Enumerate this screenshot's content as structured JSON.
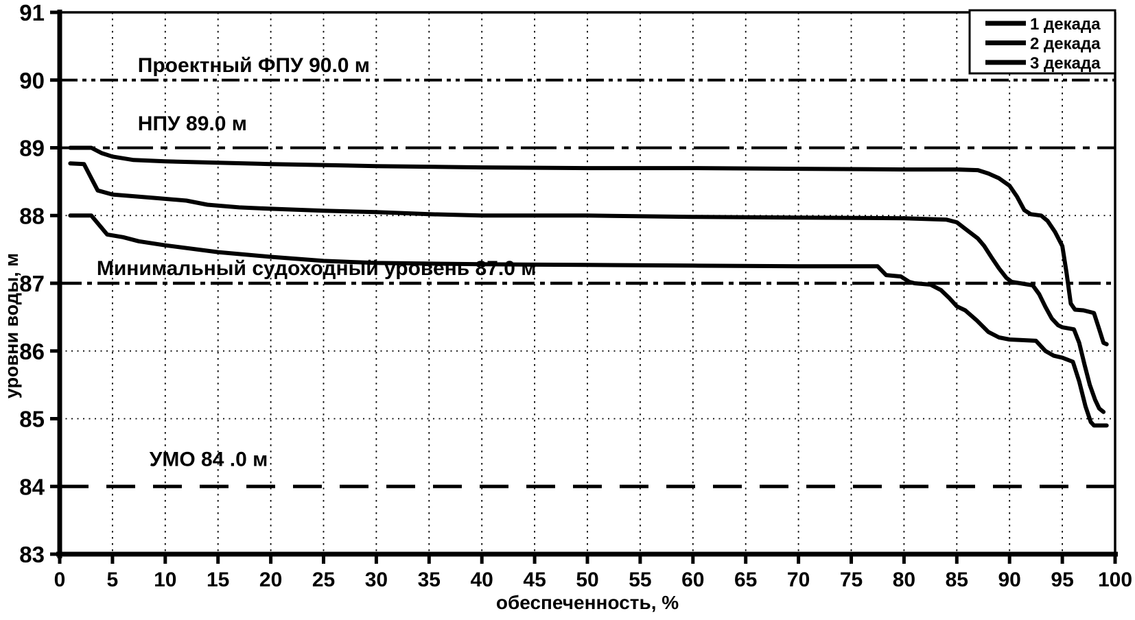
{
  "figure": {
    "background": "#ffffff",
    "ink_color": "#000000"
  },
  "chart_data": {
    "type": "line",
    "title": "",
    "xlabel": "обеспеченность, %",
    "ylabel": "уровни воды, м",
    "xlim": [
      0,
      100
    ],
    "ylim": [
      83,
      91
    ],
    "x_ticks": [
      0,
      5,
      10,
      15,
      20,
      25,
      30,
      35,
      40,
      45,
      50,
      55,
      60,
      65,
      70,
      75,
      80,
      85,
      90,
      95,
      100
    ],
    "y_ticks": [
      83,
      84,
      85,
      86,
      87,
      88,
      89,
      90,
      91
    ],
    "grid": {
      "vertical_pcts": [
        5,
        10,
        15,
        20,
        25,
        30,
        35,
        40,
        45,
        50,
        55,
        60,
        65,
        70,
        75,
        80,
        85,
        90,
        95
      ],
      "horizontal_dotted": [
        88,
        86,
        85
      ]
    },
    "legend": {
      "position": "top-right",
      "entries": [
        "1 декада",
        "2 декада",
        "3 декада"
      ]
    },
    "series": [
      {
        "name": "1 декада",
        "points": [
          [
            1,
            89.0
          ],
          [
            3,
            89.0
          ],
          [
            4,
            88.92
          ],
          [
            5,
            88.87
          ],
          [
            7,
            88.82
          ],
          [
            10,
            88.8
          ],
          [
            15,
            88.78
          ],
          [
            20,
            88.76
          ],
          [
            30,
            88.73
          ],
          [
            40,
            88.71
          ],
          [
            50,
            88.7
          ],
          [
            60,
            88.7
          ],
          [
            70,
            88.69
          ],
          [
            80,
            88.68
          ],
          [
            85,
            88.68
          ],
          [
            87,
            88.67
          ],
          [
            88,
            88.62
          ],
          [
            89,
            88.55
          ],
          [
            90,
            88.44
          ],
          [
            90.7,
            88.28
          ],
          [
            91.4,
            88.08
          ],
          [
            92,
            88.02
          ],
          [
            93,
            88.0
          ],
          [
            93.6,
            87.92
          ],
          [
            94.3,
            87.76
          ],
          [
            95,
            87.55
          ],
          [
            95.4,
            87.15
          ],
          [
            95.8,
            86.7
          ],
          [
            96.2,
            86.61
          ],
          [
            97,
            86.6
          ],
          [
            98,
            86.56
          ],
          [
            98.5,
            86.32
          ],
          [
            98.9,
            86.12
          ],
          [
            99.2,
            86.1
          ]
        ]
      },
      {
        "name": "2 декада",
        "points": [
          [
            1,
            88.77
          ],
          [
            2.3,
            88.76
          ],
          [
            3,
            88.55
          ],
          [
            3.6,
            88.37
          ],
          [
            5,
            88.31
          ],
          [
            9,
            88.26
          ],
          [
            12,
            88.22
          ],
          [
            14,
            88.16
          ],
          [
            17,
            88.12
          ],
          [
            20,
            88.1
          ],
          [
            25,
            88.07
          ],
          [
            30,
            88.05
          ],
          [
            35,
            88.02
          ],
          [
            40,
            88.0
          ],
          [
            50,
            88.0
          ],
          [
            60,
            87.98
          ],
          [
            70,
            87.97
          ],
          [
            80,
            87.96
          ],
          [
            84,
            87.94
          ],
          [
            85,
            87.9
          ],
          [
            86,
            87.78
          ],
          [
            87,
            87.66
          ],
          [
            87.6,
            87.55
          ],
          [
            88.3,
            87.38
          ],
          [
            89,
            87.22
          ],
          [
            89.7,
            87.08
          ],
          [
            90.2,
            87.02
          ],
          [
            91,
            87.0
          ],
          [
            92.2,
            86.97
          ],
          [
            92.8,
            86.84
          ],
          [
            93.4,
            86.65
          ],
          [
            94,
            86.48
          ],
          [
            94.6,
            86.38
          ],
          [
            95,
            86.35
          ],
          [
            96.1,
            86.32
          ],
          [
            96.6,
            86.12
          ],
          [
            97.1,
            85.8
          ],
          [
            97.6,
            85.5
          ],
          [
            98.1,
            85.28
          ],
          [
            98.5,
            85.15
          ],
          [
            98.9,
            85.1
          ]
        ]
      },
      {
        "name": "3 декада",
        "points": [
          [
            1,
            88.0
          ],
          [
            3,
            88.0
          ],
          [
            3.8,
            87.85
          ],
          [
            4.5,
            87.72
          ],
          [
            6,
            87.68
          ],
          [
            7.5,
            87.62
          ],
          [
            10,
            87.56
          ],
          [
            15,
            87.46
          ],
          [
            20,
            87.39
          ],
          [
            25,
            87.33
          ],
          [
            30,
            87.3
          ],
          [
            40,
            87.28
          ],
          [
            50,
            87.27
          ],
          [
            60,
            87.26
          ],
          [
            70,
            87.25
          ],
          [
            77.5,
            87.25
          ],
          [
            78.3,
            87.12
          ],
          [
            79.7,
            87.1
          ],
          [
            80.5,
            87.02
          ],
          [
            81,
            87.0
          ],
          [
            82.5,
            86.98
          ],
          [
            83.5,
            86.9
          ],
          [
            84.3,
            86.78
          ],
          [
            85,
            86.66
          ],
          [
            85.8,
            86.6
          ],
          [
            86.9,
            86.45
          ],
          [
            88,
            86.28
          ],
          [
            89,
            86.2
          ],
          [
            90,
            86.17
          ],
          [
            92.5,
            86.15
          ],
          [
            93.4,
            86.0
          ],
          [
            94.2,
            85.93
          ],
          [
            95,
            85.9
          ],
          [
            96,
            85.84
          ],
          [
            96.6,
            85.55
          ],
          [
            97.2,
            85.18
          ],
          [
            97.7,
            84.95
          ],
          [
            98,
            84.9
          ],
          [
            99.2,
            84.9
          ]
        ]
      }
    ],
    "reference_lines": [
      {
        "label": "Проектный ФПУ 90.0 м",
        "value": 90.0,
        "style": "dash-dot-dot",
        "label_x_pct": 7.4,
        "label_y_val": 90.12
      },
      {
        "label": "НПУ 89.0 м",
        "value": 89.0,
        "style": "dash-dot-long",
        "label_x_pct": 7.4,
        "label_y_val": 89.26
      },
      {
        "label": "Минимальный судоходный уровень 87.0 м",
        "value": 87.0,
        "style": "dash-dot",
        "label_x_pct": 3.5,
        "label_y_val": 87.12
      },
      {
        "label": "УМО 84 .0 м",
        "value": 84.0,
        "style": "long-dash",
        "label_x_pct": 8.5,
        "label_y_val": 84.3
      }
    ]
  }
}
